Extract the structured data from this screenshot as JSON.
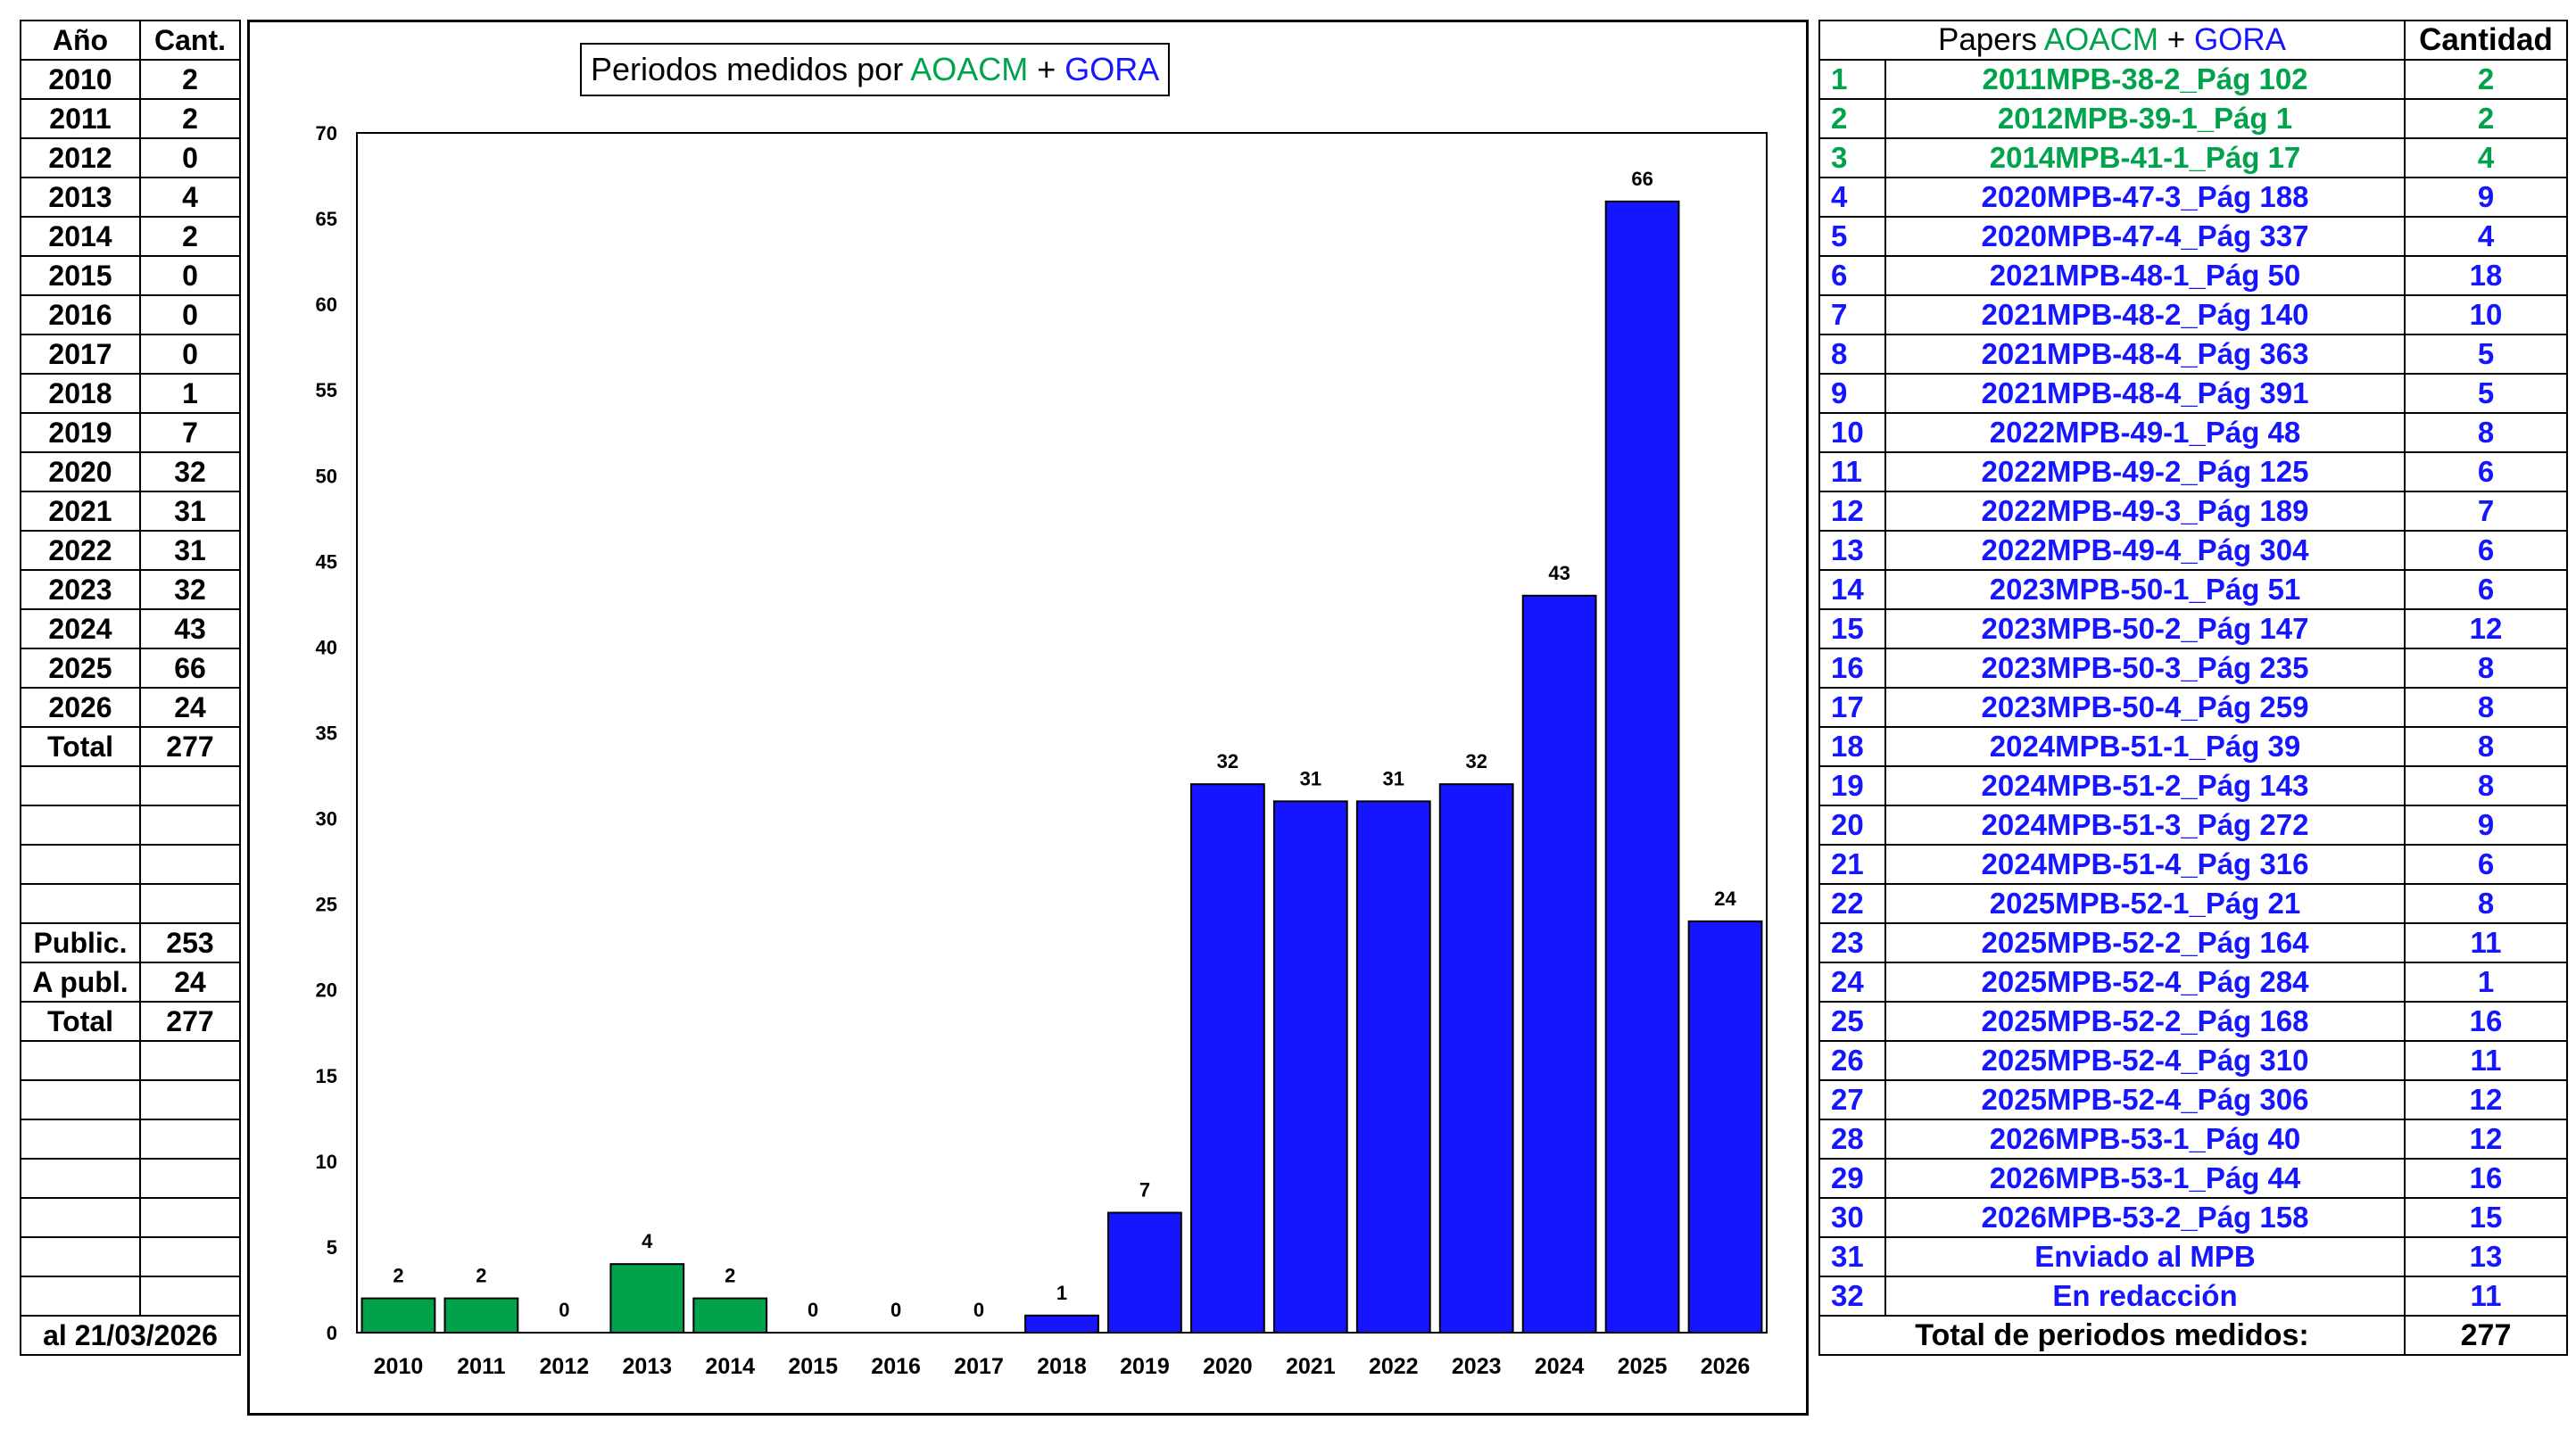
{
  "colors": {
    "aoacm": "#00a34b",
    "gora": "#1515ff"
  },
  "left_table": {
    "header": {
      "year": "Año",
      "count": "Cant."
    },
    "rows": [
      {
        "year": "2010",
        "count": "2"
      },
      {
        "year": "2011",
        "count": "2"
      },
      {
        "year": "2012",
        "count": "0"
      },
      {
        "year": "2013",
        "count": "4"
      },
      {
        "year": "2014",
        "count": "2"
      },
      {
        "year": "2015",
        "count": "0"
      },
      {
        "year": "2016",
        "count": "0"
      },
      {
        "year": "2017",
        "count": "0"
      },
      {
        "year": "2018",
        "count": "1"
      },
      {
        "year": "2019",
        "count": "7"
      },
      {
        "year": "2020",
        "count": "32"
      },
      {
        "year": "2021",
        "count": "31"
      },
      {
        "year": "2022",
        "count": "31"
      },
      {
        "year": "2023",
        "count": "32"
      },
      {
        "year": "2024",
        "count": "43"
      },
      {
        "year": "2025",
        "count": "66"
      },
      {
        "year": "2026",
        "count": "24"
      }
    ],
    "total": {
      "label": "Total",
      "value": "277"
    },
    "summary": [
      {
        "label": "Public.",
        "value": "253"
      },
      {
        "label": "A publ.",
        "value": "24"
      },
      {
        "label": "Total",
        "value": "277"
      }
    ],
    "footer": "al 21/03/2026"
  },
  "chart_data": {
    "type": "bar",
    "title": {
      "prefix": "Periodos medidos por ",
      "part1": "AOACM",
      "separator": " + ",
      "part2": "GORA"
    },
    "categories": [
      "2010",
      "2011",
      "2012",
      "2013",
      "2014",
      "2015",
      "2016",
      "2017",
      "2018",
      "2019",
      "2020",
      "2021",
      "2022",
      "2023",
      "2024",
      "2025",
      "2026"
    ],
    "values": [
      2,
      2,
      0,
      4,
      2,
      0,
      0,
      0,
      1,
      7,
      32,
      31,
      31,
      32,
      43,
      66,
      24
    ],
    "bar_colors": [
      "aoacm",
      "aoacm",
      "aoacm",
      "aoacm",
      "aoacm",
      "aoacm",
      "aoacm",
      "aoacm",
      "gora",
      "gora",
      "gora",
      "gora",
      "gora",
      "gora",
      "gora",
      "gora",
      "gora"
    ],
    "ylim": [
      0,
      70
    ],
    "yticks": [
      0,
      5,
      10,
      15,
      20,
      25,
      30,
      35,
      40,
      45,
      50,
      55,
      60,
      65,
      70
    ],
    "grid": false,
    "data_labels": true
  },
  "right_table": {
    "header": {
      "papers_prefix": "Papers ",
      "papers_part1": "AOACM",
      "papers_sep": " + ",
      "papers_part2": "GORA",
      "count": "Cantidad"
    },
    "rows": [
      {
        "n": "1",
        "paper": "2011MPB-38-2_Pág 102",
        "count": "2",
        "group": "aoacm"
      },
      {
        "n": "2",
        "paper": "2012MPB-39-1_Pág 1",
        "count": "2",
        "group": "aoacm"
      },
      {
        "n": "3",
        "paper": "2014MPB-41-1_Pág 17",
        "count": "4",
        "group": "aoacm"
      },
      {
        "n": "4",
        "paper": "2020MPB-47-3_Pág 188",
        "count": "9",
        "group": "gora"
      },
      {
        "n": "5",
        "paper": "2020MPB-47-4_Pág 337",
        "count": "4",
        "group": "gora"
      },
      {
        "n": "6",
        "paper": "2021MPB-48-1_Pág 50",
        "count": "18",
        "group": "gora"
      },
      {
        "n": "7",
        "paper": "2021MPB-48-2_Pág 140",
        "count": "10",
        "group": "gora"
      },
      {
        "n": "8",
        "paper": "2021MPB-48-4_Pág 363",
        "count": "5",
        "group": "gora"
      },
      {
        "n": "9",
        "paper": "2021MPB-48-4_Pág 391",
        "count": "5",
        "group": "gora"
      },
      {
        "n": "10",
        "paper": "2022MPB-49-1_Pág 48",
        "count": "8",
        "group": "gora"
      },
      {
        "n": "11",
        "paper": "2022MPB-49-2_Pág 125",
        "count": "6",
        "group": "gora"
      },
      {
        "n": "12",
        "paper": "2022MPB-49-3_Pág 189",
        "count": "7",
        "group": "gora"
      },
      {
        "n": "13",
        "paper": "2022MPB-49-4_Pág 304",
        "count": "6",
        "group": "gora"
      },
      {
        "n": "14",
        "paper": "2023MPB-50-1_Pág 51",
        "count": "6",
        "group": "gora"
      },
      {
        "n": "15",
        "paper": "2023MPB-50-2_Pág 147",
        "count": "12",
        "group": "gora"
      },
      {
        "n": "16",
        "paper": "2023MPB-50-3_Pág 235",
        "count": "8",
        "group": "gora"
      },
      {
        "n": "17",
        "paper": "2023MPB-50-4_Pág 259",
        "count": "8",
        "group": "gora"
      },
      {
        "n": "18",
        "paper": "2024MPB-51-1_Pág 39",
        "count": "8",
        "group": "gora"
      },
      {
        "n": "19",
        "paper": "2024MPB-51-2_Pág 143",
        "count": "8",
        "group": "gora"
      },
      {
        "n": "20",
        "paper": "2024MPB-51-3_Pág 272",
        "count": "9",
        "group": "gora"
      },
      {
        "n": "21",
        "paper": "2024MPB-51-4_Pág 316",
        "count": "6",
        "group": "gora"
      },
      {
        "n": "22",
        "paper": "2025MPB-52-1_Pág 21",
        "count": "8",
        "group": "gora"
      },
      {
        "n": "23",
        "paper": "2025MPB-52-2_Pág 164",
        "count": "11",
        "group": "gora"
      },
      {
        "n": "24",
        "paper": "2025MPB-52-4_Pág 284",
        "count": "1",
        "group": "gora"
      },
      {
        "n": "25",
        "paper": "2025MPB-52-2_Pág 168",
        "count": "16",
        "group": "gora"
      },
      {
        "n": "26",
        "paper": "2025MPB-52-4_Pág 310",
        "count": "11",
        "group": "gora"
      },
      {
        "n": "27",
        "paper": "2025MPB-52-4_Pág 306",
        "count": "12",
        "group": "gora"
      },
      {
        "n": "28",
        "paper": "2026MPB-53-1_Pág 40",
        "count": "12",
        "group": "gora"
      },
      {
        "n": "29",
        "paper": "2026MPB-53-1_Pág 44",
        "count": "16",
        "group": "gora"
      },
      {
        "n": "30",
        "paper": "2026MPB-53-2_Pág 158",
        "count": "15",
        "group": "gora"
      },
      {
        "n": "31",
        "paper": "Enviado al MPB",
        "count": "13",
        "group": "gora"
      },
      {
        "n": "32",
        "paper": "En redacción",
        "count": "11",
        "group": "gora"
      }
    ],
    "total": {
      "label": "Total de periodos medidos:",
      "value": "277"
    }
  }
}
